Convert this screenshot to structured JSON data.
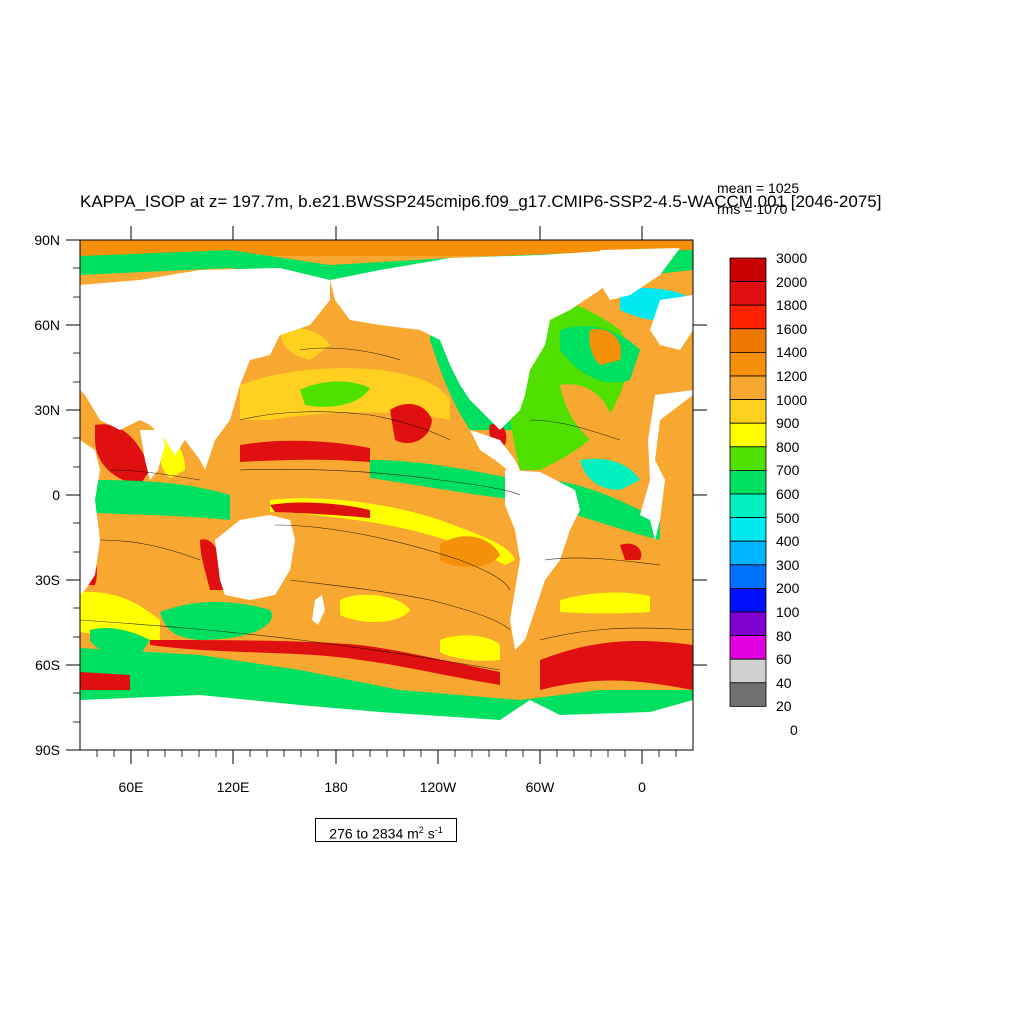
{
  "title": "KAPPA_ISOP at z= 197.7m, b.e21.BWSSP245cmip6.f09_g17.CMIP6-SSP2-4.5-WACCM.001 [2046-2075]",
  "stats": {
    "mean": "mean = 1025",
    "rms": "rms = 1070"
  },
  "range": {
    "prefix": "276 to 2834 m",
    "m_exp": "2",
    "s": " s",
    "s_exp": "-1"
  },
  "lat_labels": [
    "90N",
    "60N",
    "30N",
    "0",
    "30S",
    "60S",
    "90S"
  ],
  "lon_labels": [
    "60E",
    "120E",
    "180",
    "120W",
    "60W",
    "0"
  ],
  "colorbar": {
    "labels": [
      "3000",
      "2000",
      "1800",
      "1600",
      "1400",
      "1200",
      "1000",
      "900",
      "800",
      "700",
      "600",
      "500",
      "400",
      "300",
      "200",
      "100",
      "80",
      "60",
      "40",
      "20",
      "0"
    ],
    "colors": [
      "#c80000",
      "#e01010",
      "#ff2200",
      "#ee7700",
      "#f5900a",
      "#f8a830",
      "#ffd020",
      "#ffff00",
      "#50e000",
      "#00e060",
      "#00f0c0",
      "#00e8f0",
      "#00b4ff",
      "#0070ff",
      "#0010ff",
      "#8000d0",
      "#e000e0",
      "#d0d0d0",
      "#707070"
    ]
  },
  "map": {
    "ocean_colors": {
      "base": "#f8a830",
      "warm": "#f5900a",
      "hot": "#ee7700",
      "red": "#e01010",
      "deep_red": "#c80000",
      "yellow": "#ffd020",
      "bright_yellow": "#ffff00",
      "lime": "#50e000",
      "green": "#00e060",
      "aqua": "#00f0c0",
      "cyan": "#00e8f0"
    },
    "land_color": "#ffffff"
  }
}
